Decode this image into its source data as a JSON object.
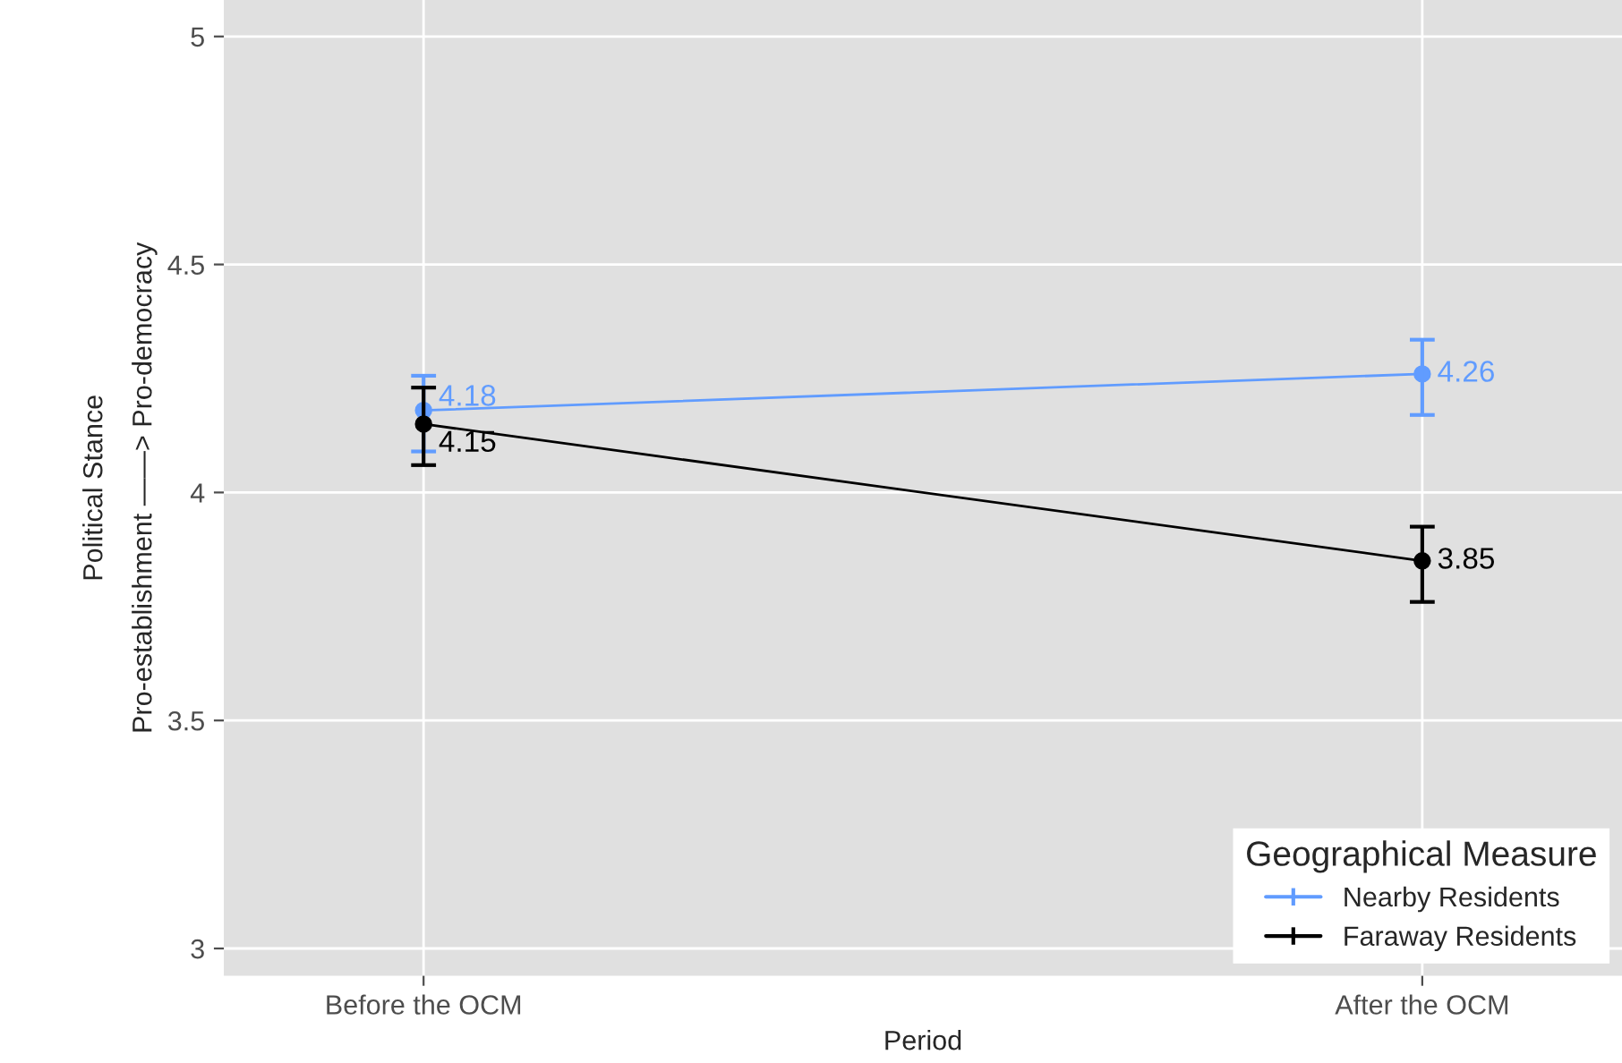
{
  "chart_data": {
    "type": "line",
    "xlabel": "Period",
    "ylabel": "Political Stance\nPro-establishment ——> Pro-democracy",
    "categories": [
      "Before the OCM",
      "After the OCM"
    ],
    "series": [
      {
        "name": "Nearby Residents",
        "color": "#619cff",
        "values": [
          4.18,
          4.26
        ],
        "errors": [
          [
            4.09,
            4.256
          ],
          [
            4.17,
            4.335
          ]
        ],
        "value_labels": [
          "4.18",
          "4.26"
        ]
      },
      {
        "name": "Faraway Residents",
        "color": "#000000",
        "values": [
          4.15,
          3.85
        ],
        "errors": [
          [
            4.06,
            4.23
          ],
          [
            3.76,
            3.925
          ]
        ],
        "value_labels": [
          "4.15",
          "3.85"
        ]
      }
    ],
    "ylim": [
      2.94,
      5.08
    ],
    "yticks": [
      3,
      3.5,
      4,
      4.5,
      5
    ],
    "grid": true,
    "legend": "bottom right",
    "legend_title": "Geographical Measure",
    "marker": "circle",
    "line_style": "solid"
  }
}
